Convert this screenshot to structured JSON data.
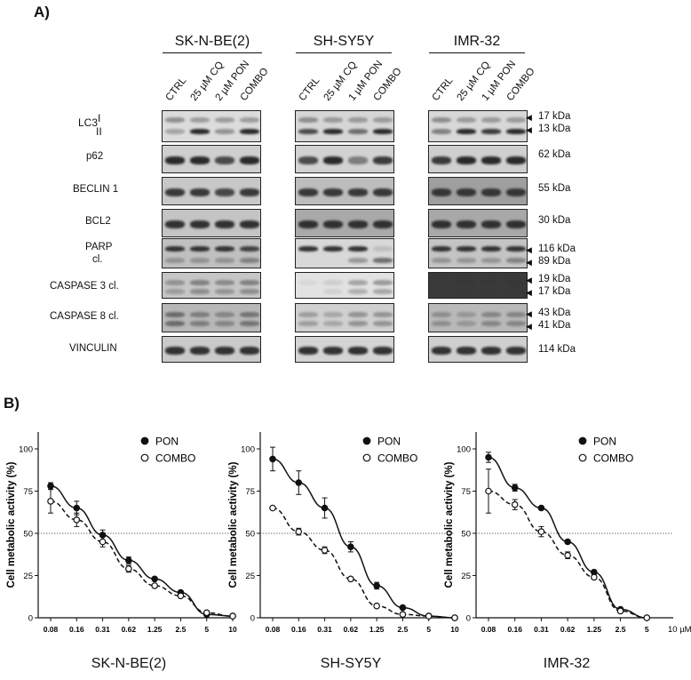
{
  "panel_a": {
    "letter": "A)",
    "cell_lines": [
      {
        "name": "SK-N-BE(2)",
        "lanes": [
          "CTRL",
          "25 µM CQ",
          "2 µM PON",
          "COMBO"
        ]
      },
      {
        "name": "SH-SY5Y",
        "lanes": [
          "CTRL",
          "25 µM CQ",
          "1 µM PON",
          "COMBO"
        ]
      },
      {
        "name": "IMR-32",
        "lanes": [
          "CTRL",
          "25 µM CQ",
          "1 µM PON",
          "COMBO"
        ]
      }
    ],
    "rows": [
      {
        "label": "LC3",
        "sub": [
          "I",
          "II"
        ],
        "kda": [
          "17 kDa",
          "13 kDa"
        ]
      },
      {
        "label": "p62",
        "kda": [
          "62 kDa"
        ]
      },
      {
        "label": "BECLIN 1",
        "kda": [
          "55 kDa"
        ]
      },
      {
        "label": "BCL2",
        "kda": [
          "30 kDa"
        ]
      },
      {
        "label": "PARP",
        "label2": "cl.",
        "kda": [
          "116 kDa",
          "89 kDa"
        ]
      },
      {
        "label": "CASPASE 3 cl.",
        "kda": [
          "19 kDa",
          "17 kDa"
        ]
      },
      {
        "label": "CASPASE 8 cl.",
        "kda": [
          "43 kDa",
          "41 kDa"
        ]
      },
      {
        "label": "VINCULIN",
        "kda": [
          "114 kDa"
        ]
      }
    ]
  },
  "panel_b": {
    "letter": "B)",
    "x_unit": "10 µM"
  },
  "chart_data": [
    {
      "type": "line",
      "title": "SK-N-BE(2)",
      "ylabel": "Cell metabolic activity (%)",
      "x_ticks": [
        "0.08",
        "0.16",
        "0.31",
        "0.62",
        "1.25",
        "2.5",
        "5",
        "10"
      ],
      "y_ticks": [
        "0",
        "25",
        "50",
        "75",
        "100"
      ],
      "ylim": [
        0,
        110
      ],
      "reference_line": 50,
      "series": [
        {
          "name": "PON",
          "marker": "filled",
          "line": "solid",
          "values": [
            78,
            65,
            49,
            34,
            23,
            15,
            2,
            1
          ],
          "errors": [
            2,
            4,
            3,
            2,
            1,
            1,
            1,
            1
          ]
        },
        {
          "name": "COMBO",
          "marker": "open",
          "line": "dashed",
          "values": [
            69,
            58,
            45,
            29,
            19,
            13,
            3,
            1
          ],
          "errors": [
            7,
            4,
            3,
            2,
            1,
            1,
            1,
            1
          ]
        }
      ]
    },
    {
      "type": "line",
      "title": "SH-SY5Y",
      "ylabel": "Cell metabolic activity (%)",
      "x_ticks": [
        "0.08",
        "0.16",
        "0.31",
        "0.62",
        "1.25",
        "2.5",
        "5",
        "10"
      ],
      "y_ticks": [
        "0",
        "25",
        "50",
        "75",
        "100"
      ],
      "ylim": [
        0,
        110
      ],
      "reference_line": 50,
      "series": [
        {
          "name": "PON",
          "marker": "filled",
          "line": "solid",
          "values": [
            94,
            80,
            65,
            42,
            19,
            6,
            1,
            0
          ],
          "errors": [
            7,
            7,
            6,
            3,
            2,
            1,
            1,
            0
          ]
        },
        {
          "name": "COMBO",
          "marker": "open",
          "line": "dashed",
          "values": [
            65,
            51,
            40,
            23,
            7,
            2,
            1,
            0
          ],
          "errors": [
            1,
            2,
            2,
            1,
            1,
            1,
            0,
            0
          ]
        }
      ]
    },
    {
      "type": "line",
      "title": "IMR-32",
      "ylabel": "Cell metabolic activity (%)",
      "x_ticks": [
        "0.08",
        "0.16",
        "0.31",
        "0.62",
        "1.25",
        "2.5",
        "5"
      ],
      "y_ticks": [
        "0",
        "25",
        "50",
        "75",
        "100"
      ],
      "ylim": [
        0,
        110
      ],
      "reference_line": 50,
      "series": [
        {
          "name": "PON",
          "marker": "filled",
          "line": "solid",
          "values": [
            95,
            77,
            65,
            45,
            27,
            5,
            0
          ],
          "errors": [
            3,
            2,
            1,
            1,
            1,
            1,
            0
          ]
        },
        {
          "name": "COMBO",
          "marker": "open",
          "line": "dashed",
          "values": [
            75,
            67,
            51,
            37,
            24,
            4,
            0
          ],
          "errors": [
            13,
            3,
            3,
            2,
            1,
            1,
            0
          ]
        }
      ]
    }
  ]
}
